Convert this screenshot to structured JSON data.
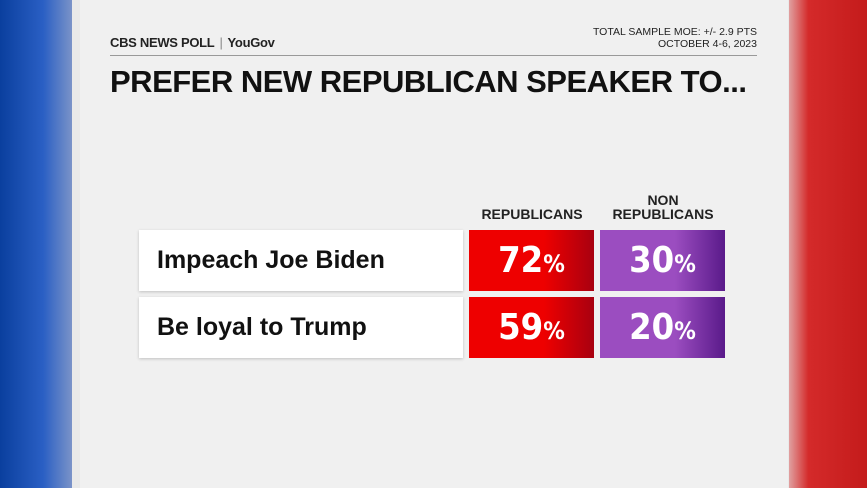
{
  "header": {
    "brand": "CBS NEWS POLL",
    "partner": "YouGov",
    "moe": "TOTAL SAMPLE MOE: +/- 2.9 PTS",
    "dates": "OCTOBER 4-6, 2023",
    "title": "PREFER NEW REPUBLICAN SPEAKER TO..."
  },
  "table": {
    "columns": [
      [
        "REPUBLICANS"
      ],
      [
        "NON",
        "REPUBLICANS"
      ]
    ],
    "rows": [
      {
        "label": "Impeach Joe Biden",
        "cells": [
          {
            "number": "72",
            "unit": "%"
          },
          {
            "number": "30",
            "unit": "%"
          }
        ]
      },
      {
        "label": "Be loyal to Trump",
        "cells": [
          {
            "number": "59",
            "unit": "%"
          },
          {
            "number": "20",
            "unit": "%"
          }
        ]
      }
    ]
  }
}
